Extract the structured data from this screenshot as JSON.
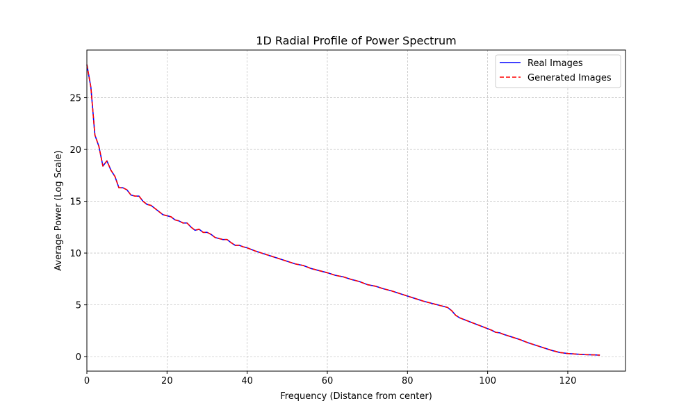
{
  "chart_data": {
    "type": "line",
    "title": "1D Radial Profile of Power Spectrum",
    "xlabel": "Frequency (Distance from center)",
    "ylabel": "Average Power (Log Scale)",
    "xlim": [
      0,
      134.4
    ],
    "ylim": [
      -1.4,
      29.6
    ],
    "xticks": [
      0,
      20,
      40,
      60,
      80,
      100,
      120
    ],
    "yticks": [
      0,
      5,
      10,
      15,
      20,
      25
    ],
    "grid": true,
    "legend_position": "upper right",
    "series": [
      {
        "name": "Real Images",
        "color": "#0000ff",
        "style": "solid",
        "points": [
          [
            0,
            28.2
          ],
          [
            1,
            26.0
          ],
          [
            2,
            21.4
          ],
          [
            3,
            20.3
          ],
          [
            4,
            18.4
          ],
          [
            5,
            18.9
          ],
          [
            6,
            18.0
          ],
          [
            7,
            17.4
          ],
          [
            8,
            16.3
          ],
          [
            9,
            16.3
          ],
          [
            10,
            16.1
          ],
          [
            11,
            15.6
          ],
          [
            12,
            15.5
          ],
          [
            13,
            15.5
          ],
          [
            14,
            15.0
          ],
          [
            15,
            14.7
          ],
          [
            16,
            14.6
          ],
          [
            17,
            14.3
          ],
          [
            18,
            14.0
          ],
          [
            19,
            13.7
          ],
          [
            20,
            13.6
          ],
          [
            21,
            13.5
          ],
          [
            22,
            13.2
          ],
          [
            23,
            13.1
          ],
          [
            24,
            12.9
          ],
          [
            25,
            12.9
          ],
          [
            26,
            12.5
          ],
          [
            27,
            12.2
          ],
          [
            28,
            12.3
          ],
          [
            29,
            12.0
          ],
          [
            30,
            12.0
          ],
          [
            31,
            11.8
          ],
          [
            32,
            11.5
          ],
          [
            33,
            11.4
          ],
          [
            34,
            11.3
          ],
          [
            35,
            11.3
          ],
          [
            36,
            11.0
          ],
          [
            37,
            10.75
          ],
          [
            38,
            10.75
          ],
          [
            39,
            10.6
          ],
          [
            40,
            10.5
          ],
          [
            42,
            10.2
          ],
          [
            44,
            9.95
          ],
          [
            46,
            9.7
          ],
          [
            48,
            9.45
          ],
          [
            50,
            9.2
          ],
          [
            52,
            8.95
          ],
          [
            54,
            8.8
          ],
          [
            56,
            8.5
          ],
          [
            58,
            8.3
          ],
          [
            60,
            8.1
          ],
          [
            62,
            7.85
          ],
          [
            64,
            7.7
          ],
          [
            66,
            7.45
          ],
          [
            68,
            7.25
          ],
          [
            70,
            6.95
          ],
          [
            72,
            6.8
          ],
          [
            74,
            6.55
          ],
          [
            76,
            6.35
          ],
          [
            78,
            6.1
          ],
          [
            80,
            5.85
          ],
          [
            82,
            5.6
          ],
          [
            84,
            5.35
          ],
          [
            86,
            5.15
          ],
          [
            88,
            4.95
          ],
          [
            89,
            4.85
          ],
          [
            90,
            4.75
          ],
          [
            91,
            4.45
          ],
          [
            92,
            4.0
          ],
          [
            93,
            3.75
          ],
          [
            94,
            3.6
          ],
          [
            96,
            3.3
          ],
          [
            98,
            3.0
          ],
          [
            100,
            2.7
          ],
          [
            101,
            2.55
          ],
          [
            102,
            2.35
          ],
          [
            103,
            2.3
          ],
          [
            104,
            2.15
          ],
          [
            106,
            1.9
          ],
          [
            108,
            1.65
          ],
          [
            110,
            1.35
          ],
          [
            112,
            1.1
          ],
          [
            114,
            0.85
          ],
          [
            116,
            0.6
          ],
          [
            118,
            0.4
          ],
          [
            120,
            0.3
          ],
          [
            122,
            0.25
          ],
          [
            124,
            0.2
          ],
          [
            126,
            0.17
          ],
          [
            128,
            0.15
          ]
        ]
      },
      {
        "name": "Generated Images",
        "color": "#ff0000",
        "style": "dashed",
        "points": [
          [
            0,
            28.2
          ],
          [
            1,
            26.0
          ],
          [
            2,
            21.4
          ],
          [
            3,
            20.3
          ],
          [
            4,
            18.4
          ],
          [
            5,
            18.9
          ],
          [
            6,
            18.0
          ],
          [
            7,
            17.4
          ],
          [
            8,
            16.3
          ],
          [
            9,
            16.3
          ],
          [
            10,
            16.1
          ],
          [
            11,
            15.6
          ],
          [
            12,
            15.5
          ],
          [
            13,
            15.5
          ],
          [
            14,
            15.0
          ],
          [
            15,
            14.7
          ],
          [
            16,
            14.6
          ],
          [
            17,
            14.3
          ],
          [
            18,
            14.0
          ],
          [
            19,
            13.7
          ],
          [
            20,
            13.6
          ],
          [
            21,
            13.5
          ],
          [
            22,
            13.2
          ],
          [
            23,
            13.1
          ],
          [
            24,
            12.9
          ],
          [
            25,
            12.9
          ],
          [
            26,
            12.5
          ],
          [
            27,
            12.2
          ],
          [
            28,
            12.3
          ],
          [
            29,
            12.0
          ],
          [
            30,
            12.0
          ],
          [
            31,
            11.8
          ],
          [
            32,
            11.5
          ],
          [
            33,
            11.4
          ],
          [
            34,
            11.3
          ],
          [
            35,
            11.3
          ],
          [
            36,
            11.0
          ],
          [
            37,
            10.75
          ],
          [
            38,
            10.75
          ],
          [
            39,
            10.6
          ],
          [
            40,
            10.5
          ],
          [
            42,
            10.2
          ],
          [
            44,
            9.95
          ],
          [
            46,
            9.7
          ],
          [
            48,
            9.45
          ],
          [
            50,
            9.2
          ],
          [
            52,
            8.95
          ],
          [
            54,
            8.8
          ],
          [
            56,
            8.5
          ],
          [
            58,
            8.3
          ],
          [
            60,
            8.1
          ],
          [
            62,
            7.85
          ],
          [
            64,
            7.7
          ],
          [
            66,
            7.45
          ],
          [
            68,
            7.25
          ],
          [
            70,
            6.95
          ],
          [
            72,
            6.8
          ],
          [
            74,
            6.55
          ],
          [
            76,
            6.35
          ],
          [
            78,
            6.1
          ],
          [
            80,
            5.85
          ],
          [
            82,
            5.6
          ],
          [
            84,
            5.35
          ],
          [
            86,
            5.15
          ],
          [
            88,
            4.95
          ],
          [
            89,
            4.85
          ],
          [
            90,
            4.75
          ],
          [
            91,
            4.45
          ],
          [
            92,
            4.0
          ],
          [
            93,
            3.75
          ],
          [
            94,
            3.6
          ],
          [
            96,
            3.3
          ],
          [
            98,
            3.0
          ],
          [
            100,
            2.7
          ],
          [
            101,
            2.55
          ],
          [
            102,
            2.35
          ],
          [
            103,
            2.3
          ],
          [
            104,
            2.15
          ],
          [
            106,
            1.9
          ],
          [
            108,
            1.65
          ],
          [
            110,
            1.35
          ],
          [
            112,
            1.1
          ],
          [
            114,
            0.85
          ],
          [
            116,
            0.6
          ],
          [
            118,
            0.4
          ],
          [
            120,
            0.3
          ],
          [
            122,
            0.25
          ],
          [
            124,
            0.2
          ],
          [
            126,
            0.17
          ],
          [
            128,
            0.15
          ]
        ]
      }
    ]
  }
}
